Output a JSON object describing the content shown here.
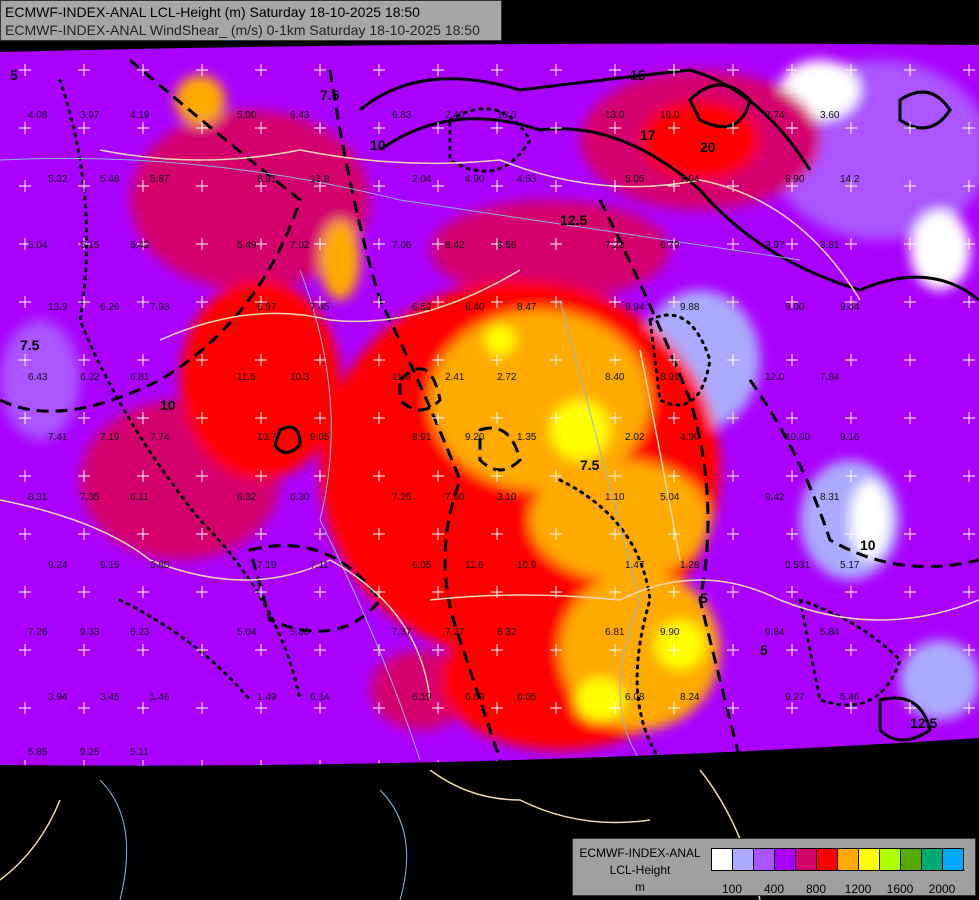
{
  "titles": {
    "line1": "ECMWF-INDEX-ANAL LCL-Height (m) Saturday 18-10-2025 18:50",
    "line2": "ECMWF-INDEX-ANAL WindShear_ (m/s) 0-1km Saturday 18-10-2025 18:50"
  },
  "legend": {
    "line1": "ECMWF-INDEX-ANAL",
    "line2": "LCL-Height",
    "line3": "m",
    "colors": [
      "#ffffff",
      "#aaaaff",
      "#aa55ff",
      "#aa00ff",
      "#d4006e",
      "#ff0000",
      "#ffaa00",
      "#ffff00",
      "#aaff00",
      "#55aa00",
      "#00aa77",
      "#00aaff"
    ],
    "ticks": [
      "100",
      "400",
      "800",
      "1200",
      "1600",
      "2000"
    ]
  },
  "contour_labels": [
    "5",
    "7.5",
    "10",
    "12.5",
    "15",
    "17",
    "20",
    "10",
    "7.5",
    "5",
    "7.5",
    "10",
    "12.5",
    "5"
  ],
  "station_values": [
    "4.08",
    "3.97",
    "4.19",
    "5.00",
    "6.43",
    "6.83",
    "2.40",
    "16.0",
    "13.0",
    "16.0",
    "2.74",
    "3.60",
    "5.32",
    "5.48",
    "5.87",
    "6.91",
    "13.8",
    "2.04",
    "4.90",
    "4.53",
    "5.05",
    "7.04",
    "6.90",
    "14.2",
    "5.04",
    "5.15",
    "5.42",
    "5.49",
    "7.02",
    "7.06",
    "8.42",
    "8.56",
    "7.23",
    "6.79",
    "3.97",
    "3.81",
    "13.9",
    "6.26",
    "7.93",
    "6.97",
    "7.45",
    "6.52",
    "6.40",
    "8.47",
    "9.94",
    "9.88",
    "9.00",
    "9.44",
    "6.43",
    "6.32",
    "6.81",
    "11.5",
    "10.3",
    "11.6",
    "2.41",
    "2.72",
    "8.40",
    "8.91",
    "12.0",
    "7.84",
    "7.41",
    "7.19",
    "7.74",
    "10.7",
    "9.05",
    "8.91",
    "9.20",
    "1.35",
    "2.02",
    "4.90",
    "10.00",
    "9.16",
    "8.31",
    "7.35",
    "6.11",
    "6.32",
    "6.30",
    "7.25",
    "7.60",
    "3.10",
    "1.10",
    "5.04",
    "9.42",
    "8.31",
    "9.24",
    "9.15",
    "6.80",
    "7.19",
    "7.11",
    "6.05",
    "11.6",
    "10.9",
    "1.47",
    "1.28",
    "0.531",
    "5.17",
    "7.26",
    "9.33",
    "6.23",
    "5.04",
    "5.86",
    "7.37",
    "7.27",
    "6.32",
    "6.81",
    "9.90",
    "9.84",
    "5.84",
    "3.94",
    "3.45",
    "1.46",
    "1.49",
    "6.14",
    "6.19",
    "6.69",
    "6.05",
    "6.08",
    "8.24",
    "9.27",
    "5.46",
    "5.85",
    "9.25",
    "5.11"
  ]
}
